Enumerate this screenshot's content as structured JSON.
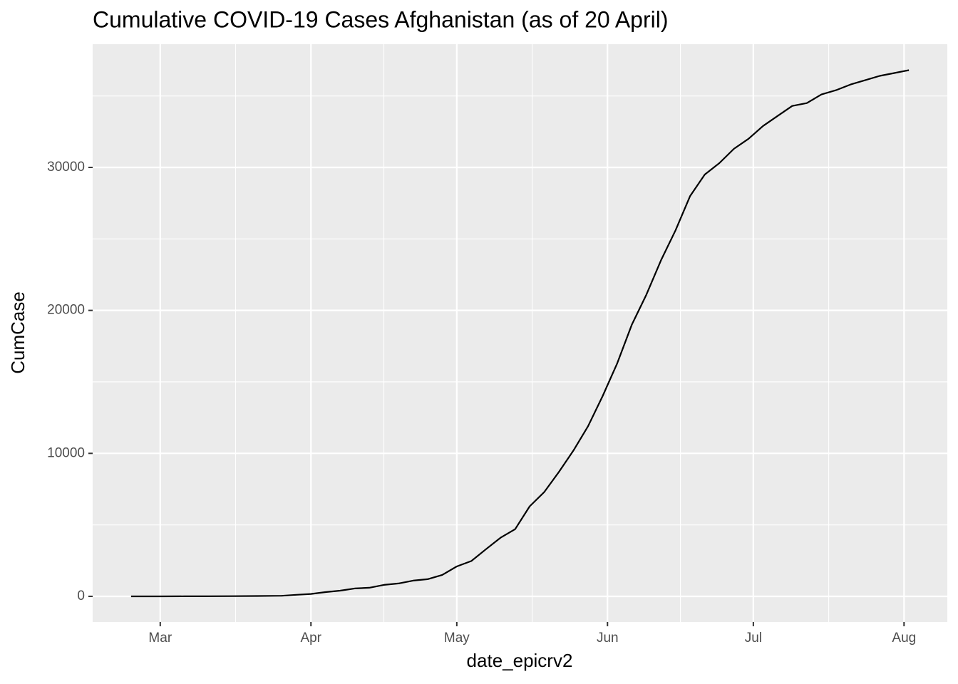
{
  "chart_data": {
    "type": "line",
    "title": "Cumulative COVID-19 Cases Afghanistan (as of 20 April)",
    "x_label": "date_epicrv2",
    "y_label": "CumCase",
    "x": [
      -6,
      0,
      5,
      10,
      15,
      20,
      25,
      28,
      31,
      34,
      37,
      40,
      43,
      46,
      49,
      52,
      55,
      58,
      61,
      64,
      67,
      70,
      73,
      76,
      79,
      82,
      85,
      88,
      91,
      94,
      97,
      100,
      103,
      106,
      109,
      112,
      115,
      118,
      121,
      124,
      127,
      130,
      133,
      136,
      139,
      142,
      145,
      148,
      151,
      154
    ],
    "series": [
      {
        "name": "CumCase",
        "color": "#000000",
        "values": [
          1,
          1,
          5,
          7,
          16,
          24,
          40,
          110,
          170,
          300,
          400,
          550,
          600,
          800,
          900,
          1100,
          1200,
          1500,
          2090,
          2470,
          3300,
          4100,
          4700,
          6300,
          7300,
          8700,
          10200,
          11900,
          14000,
          16300,
          19000,
          21100,
          23500,
          25600,
          28000,
          29500,
          30300,
          31300,
          32000,
          32900,
          33600,
          34300,
          34500,
          35100,
          35400,
          35800,
          36100,
          36400,
          36600,
          36800
        ]
      }
    ],
    "xlim": [
      -13.9,
      161.9
    ],
    "xticks": [
      {
        "value": 0,
        "label": "Mar"
      },
      {
        "value": 31,
        "label": "Apr"
      },
      {
        "value": 61,
        "label": "May"
      },
      {
        "value": 92,
        "label": "Jun"
      },
      {
        "value": 122,
        "label": "Jul"
      },
      {
        "value": 153,
        "label": "Aug"
      }
    ],
    "x_minor_grid": [
      15.5,
      46,
      76.5,
      107,
      137.5
    ],
    "ylim": [
      -1795,
      38620
    ],
    "yticks": [
      0,
      10000,
      20000,
      30000
    ],
    "y_minor_grid": [
      5000,
      15000,
      25000,
      35000
    ],
    "grid": true
  }
}
